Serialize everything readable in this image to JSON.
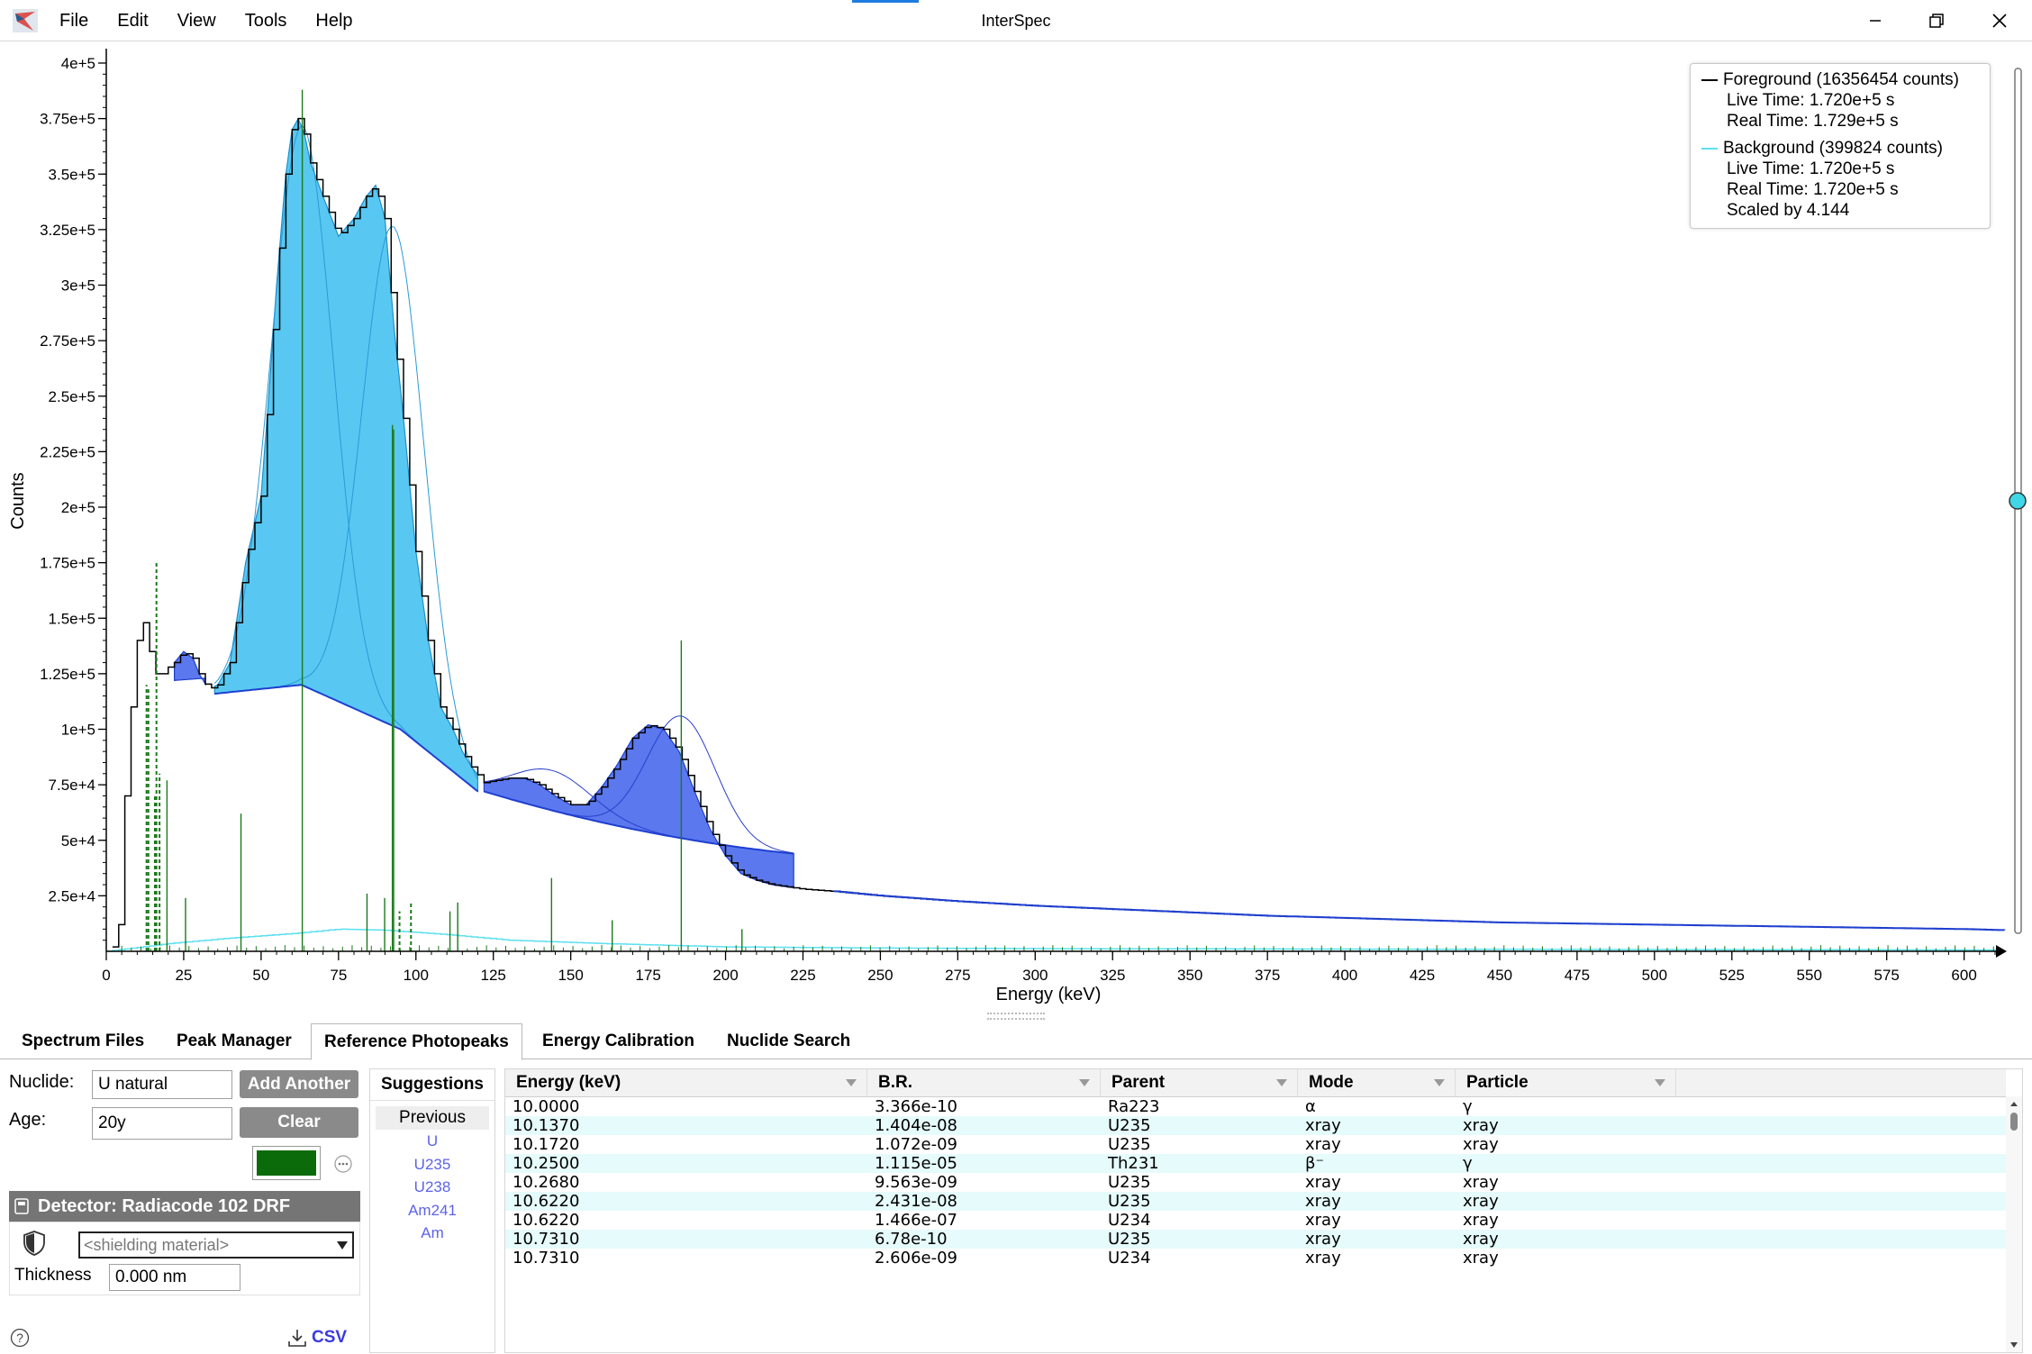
{
  "window": {
    "title": "InterSpec"
  },
  "menu": [
    "File",
    "Edit",
    "View",
    "Tools",
    "Help"
  ],
  "chart_data": {
    "type": "line",
    "xlabel": "Energy (keV)",
    "ylabel": "Counts",
    "xlim": [
      0,
      610
    ],
    "ylim": [
      0,
      400000
    ],
    "x_ticks": [
      0,
      25,
      50,
      75,
      100,
      125,
      150,
      175,
      200,
      225,
      250,
      275,
      300,
      325,
      350,
      375,
      400,
      425,
      450,
      475,
      500,
      525,
      550,
      575,
      600
    ],
    "y_ticks": [
      25000,
      50000,
      75000,
      100000,
      125000,
      150000,
      175000,
      200000,
      225000,
      250000,
      275000,
      300000,
      325000,
      350000,
      375000,
      400000
    ],
    "y_tick_labels": [
      "2.5e+4",
      "5e+4",
      "7.5e+4",
      "1e+5",
      "1.25e+5",
      "1.5e+5",
      "1.75e+5",
      "2e+5",
      "2.25e+5",
      "2.5e+5",
      "2.75e+5",
      "3e+5",
      "3.25e+5",
      "3.5e+5",
      "3.75e+5",
      "4e+5"
    ],
    "series": [
      {
        "name": "Foreground",
        "color": "#000000",
        "x": [
          2,
          4,
          6,
          8,
          10,
          12,
          14,
          16,
          18,
          20,
          22,
          25,
          28,
          30,
          33,
          36,
          40,
          45,
          50,
          53,
          55,
          58,
          60,
          62,
          64,
          66,
          70,
          75,
          80,
          84,
          87,
          90,
          93,
          96,
          100,
          104,
          108,
          112,
          115,
          118,
          122,
          126,
          130,
          135,
          140,
          145,
          150,
          155,
          160,
          165,
          170,
          175,
          180,
          185,
          190,
          195,
          200,
          205,
          210,
          215,
          220,
          225,
          235,
          250,
          275,
          300,
          325,
          350,
          375,
          400,
          425,
          450,
          475,
          500,
          525,
          550,
          575,
          600,
          613
        ],
        "y": [
          2000,
          12000,
          70000,
          110000,
          140000,
          148000,
          135000,
          125000,
          125000,
          128000,
          130000,
          135000,
          132000,
          125000,
          118000,
          120000,
          130000,
          175000,
          205000,
          260000,
          300000,
          350000,
          370000,
          375000,
          368000,
          355000,
          340000,
          322000,
          330000,
          340000,
          345000,
          330000,
          280000,
          240000,
          180000,
          140000,
          110000,
          100000,
          90000,
          83000,
          76000,
          77000,
          78000,
          78000,
          75000,
          70000,
          66000,
          66000,
          74000,
          84000,
          96000,
          102000,
          100000,
          90000,
          72000,
          55000,
          43000,
          35000,
          32000,
          30000,
          29000,
          28000,
          27000,
          25000,
          22500,
          20500,
          19000,
          17500,
          16000,
          15000,
          14000,
          13000,
          12500,
          12000,
          11500,
          11000,
          10500,
          10000,
          9500
        ]
      },
      {
        "name": "Background",
        "color": "#5de0f0",
        "x": [
          0,
          20,
          40,
          60,
          75,
          90,
          110,
          130,
          160,
          200,
          250,
          300,
          400,
          500,
          613
        ],
        "y": [
          0,
          3500,
          6000,
          8000,
          10000,
          9500,
          7500,
          5000,
          3500,
          2000,
          1500,
          1200,
          1000,
          800,
          600
        ]
      }
    ],
    "legend": {
      "position": "top-right",
      "foreground_title": "Foreground (16356454 counts)",
      "foreground_live": "Live Time: 1.720e+5 s",
      "foreground_real": "Real Time: 1.729e+5 s",
      "background_title": "Background (399824 counts)",
      "background_live": "Live Time: 1.720e+5 s",
      "background_real": "Real Time: 1.720e+5 s",
      "background_scale": "Scaled by 4.144"
    },
    "peaks": [
      {
        "region": [
          35,
          120
        ],
        "centroid": 63.3,
        "continuum": [
          116000,
          120000,
          100000,
          72000
        ],
        "style": "light"
      },
      {
        "region": [
          35,
          120
        ],
        "centroid": 92.6,
        "style": "light"
      },
      {
        "region": [
          22,
          32
        ],
        "centroid": 25.6,
        "style": "dark"
      },
      {
        "region": [
          122,
          220
        ],
        "centroid": 143.8,
        "style": "dark"
      },
      {
        "region": [
          122,
          220
        ],
        "centroid": 185.7,
        "style": "dark"
      }
    ],
    "reference_lines": [
      {
        "energy": 13.0,
        "height": 120000,
        "dashed": true
      },
      {
        "energy": 13.6,
        "height": 118000,
        "dashed": true
      },
      {
        "energy": 15.7,
        "height": 70000,
        "dashed": true
      },
      {
        "energy": 16.2,
        "height": 175000,
        "dashed": true
      },
      {
        "energy": 17.2,
        "height": 80000,
        "dashed": true
      },
      {
        "energy": 19.6,
        "height": 77000,
        "dashed": false
      },
      {
        "energy": 25.6,
        "height": 24000,
        "dashed": false
      },
      {
        "energy": 43.5,
        "height": 62000,
        "dashed": false
      },
      {
        "energy": 63.3,
        "height": 388000,
        "dashed": false
      },
      {
        "energy": 84.2,
        "height": 26000,
        "dashed": false
      },
      {
        "energy": 89.9,
        "height": 24000,
        "dashed": false
      },
      {
        "energy": 92.4,
        "height": 237000,
        "dashed": false
      },
      {
        "energy": 92.8,
        "height": 235000,
        "dashed": false
      },
      {
        "energy": 94.7,
        "height": 18000,
        "dashed": true
      },
      {
        "energy": 98.4,
        "height": 22000,
        "dashed": true
      },
      {
        "energy": 111.0,
        "height": 18000,
        "dashed": false
      },
      {
        "energy": 113.5,
        "height": 22000,
        "dashed": false
      },
      {
        "energy": 143.8,
        "height": 33000,
        "dashed": false
      },
      {
        "energy": 163.4,
        "height": 14000,
        "dashed": false
      },
      {
        "energy": 185.7,
        "height": 140000,
        "dashed": false
      },
      {
        "energy": 205.3,
        "height": 10000,
        "dashed": false
      }
    ]
  },
  "tabs": [
    "Spectrum Files",
    "Peak Manager",
    "Reference Photopeaks",
    "Energy Calibration",
    "Nuclide Search"
  ],
  "active_tab": "Reference Photopeaks",
  "ref": {
    "nuclide_label": "Nuclide:",
    "nuclide_value": "U natural",
    "add_another": "Add Another",
    "age_label": "Age:",
    "age_value": "20y",
    "clear": "Clear",
    "line_color": "#0b6b0b",
    "detector_label": "Detector: Radiacode 102 DRF",
    "shielding_placeholder": "<shielding material>",
    "thickness_label": "Thickness",
    "thickness_value": "0.000 nm",
    "csv_label": "CSV",
    "suggestions_header": "Suggestions",
    "previous_label": "Previous",
    "suggestions": [
      "U",
      "U235",
      "U238",
      "Am241",
      "Am"
    ]
  },
  "table": {
    "columns": [
      "Energy (keV)",
      "B.R.",
      "Parent",
      "Mode",
      "Particle"
    ],
    "rows": [
      [
        "10.0000",
        "3.366e-10",
        "Ra223",
        "α",
        "γ"
      ],
      [
        "10.1370",
        "1.404e-08",
        "U235",
        "xray",
        "xray"
      ],
      [
        "10.1720",
        "1.072e-09",
        "U235",
        "xray",
        "xray"
      ],
      [
        "10.2500",
        "1.115e-05",
        "Th231",
        "β⁻",
        "γ"
      ],
      [
        "10.2680",
        "9.563e-09",
        "U235",
        "xray",
        "xray"
      ],
      [
        "10.6220",
        "2.431e-08",
        "U235",
        "xray",
        "xray"
      ],
      [
        "10.6220",
        "1.466e-07",
        "U234",
        "xray",
        "xray"
      ],
      [
        "10.7310",
        "6.78e-10",
        "U235",
        "xray",
        "xray"
      ],
      [
        "10.7310",
        "2.606e-09",
        "U234",
        "xray",
        "xray"
      ]
    ]
  }
}
